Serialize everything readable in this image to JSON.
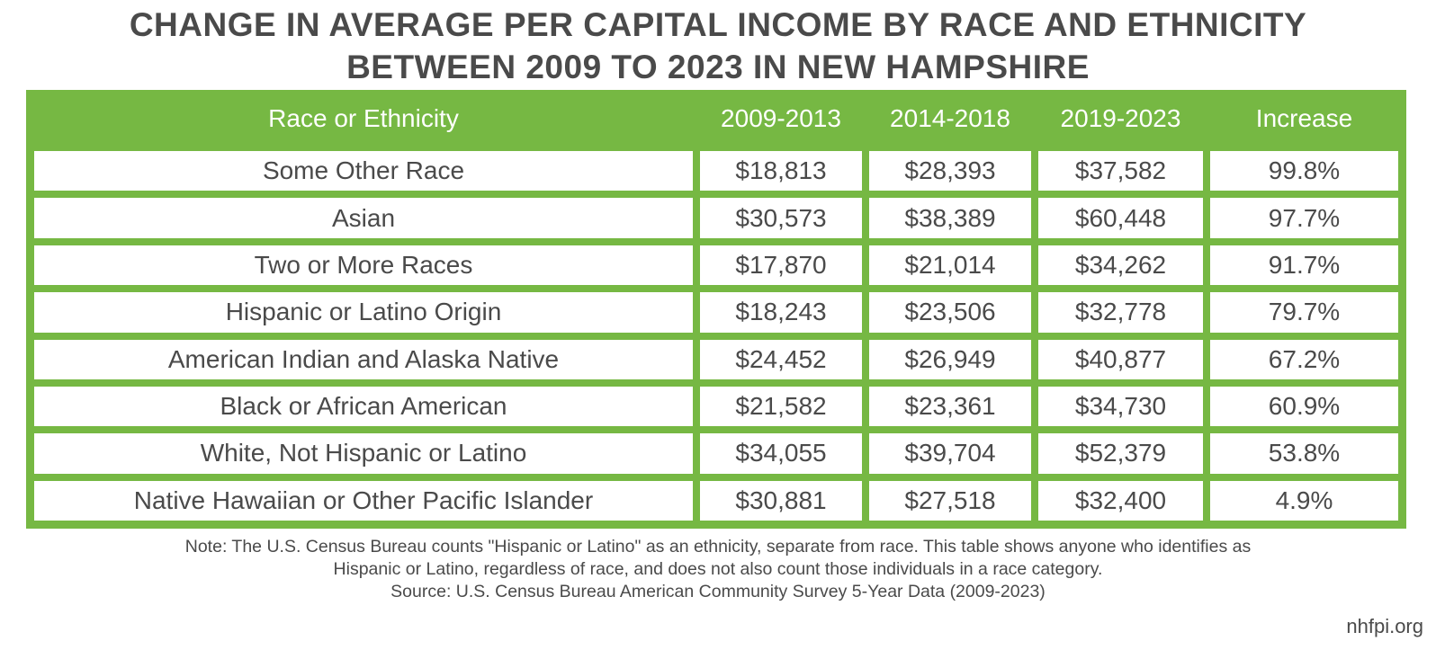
{
  "chart_data": {
    "type": "table",
    "title_lines": [
      "CHANGE IN AVERAGE PER CAPITAL INCOME BY RACE AND ETHNICITY",
      "BETWEEN 2009 TO 2023 IN NEW HAMPSHIRE"
    ],
    "columns": [
      "Race or Ethnicity",
      "2009-2013",
      "2014-2018",
      "2019-2023",
      "Increase"
    ],
    "rows": [
      [
        "Some Other Race",
        "$18,813",
        "$28,393",
        "$37,582",
        "99.8%"
      ],
      [
        "Asian",
        "$30,573",
        "$38,389",
        "$60,448",
        "97.7%"
      ],
      [
        "Two or More Races",
        "$17,870",
        "$21,014",
        "$34,262",
        "91.7%"
      ],
      [
        "Hispanic or Latino Origin",
        "$18,243",
        "$23,506",
        "$32,778",
        "79.7%"
      ],
      [
        "American Indian and Alaska Native",
        "$24,452",
        "$26,949",
        "$40,877",
        "67.2%"
      ],
      [
        "Black or African American",
        "$21,582",
        "$23,361",
        "$34,730",
        "60.9%"
      ],
      [
        "White, Not Hispanic or Latino",
        "$34,055",
        "$39,704",
        "$52,379",
        "53.8%"
      ],
      [
        "Native Hawaiian or Other Pacific Islander",
        "$30,881",
        "$27,518",
        "$32,400",
        "4.9%"
      ]
    ],
    "notes": [
      "Note: The U.S. Census Bureau counts \"Hispanic or Latino\" as an ethnicity, separate from race. This table shows anyone who identifies as",
      "Hispanic or Latino, regardless of race, and does not also count those individuals in a race category.",
      "Source: U.S. Census Bureau American Community Survey 5-Year Data (2009-2023)"
    ],
    "brand": "nhfpi.org",
    "colors": {
      "accent": "#76b843",
      "text": "#4a4a4a"
    }
  }
}
